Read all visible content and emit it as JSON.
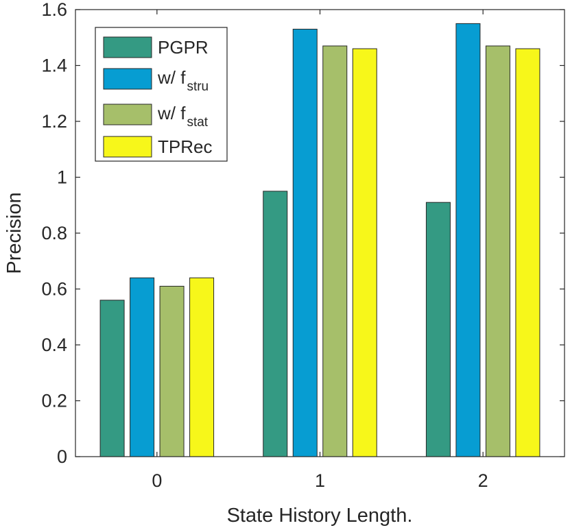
{
  "chart_data": {
    "type": "bar",
    "title": "",
    "xlabel": "State History Length.",
    "ylabel": "Precision",
    "categories": [
      "0",
      "1",
      "2"
    ],
    "ylim": [
      0,
      1.6
    ],
    "yticks": [
      "0",
      "0.2",
      "0.4",
      "0.6",
      "0.8",
      "1",
      "1.2",
      "1.4",
      "1.6"
    ],
    "ytick_values": [
      0,
      0.2,
      0.4,
      0.6,
      0.8,
      1.0,
      1.2,
      1.4,
      1.6
    ],
    "legend_position": "top-left",
    "grid": false,
    "series": [
      {
        "name": "PGPR",
        "color": "#349a83",
        "values": [
          0.56,
          0.95,
          0.91
        ]
      },
      {
        "name": "w/ f",
        "subscript": "stru",
        "color": "#079dd2",
        "values": [
          0.64,
          1.53,
          1.55
        ]
      },
      {
        "name": "w/ f",
        "subscript": "stat",
        "color": "#a6bf6a",
        "values": [
          0.61,
          1.47,
          1.47
        ]
      },
      {
        "name": "TPRec",
        "color": "#f7f71a",
        "values": [
          0.64,
          1.46,
          1.46
        ]
      }
    ]
  }
}
